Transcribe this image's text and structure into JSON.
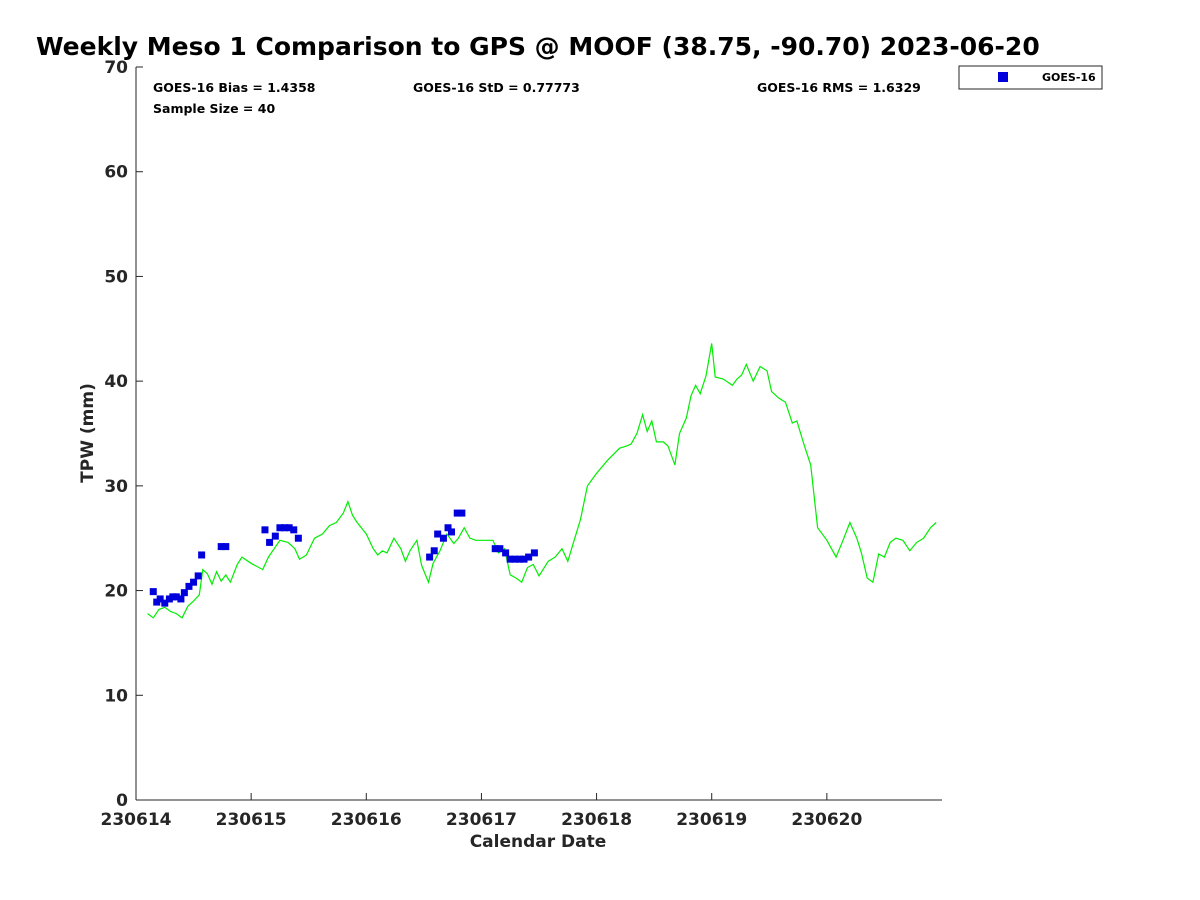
{
  "chart_data": {
    "type": "scatter",
    "title": "Weekly Meso 1 Comparison to GPS @ MOOF (38.75, -90.70) 2023-06-20",
    "xlabel": "Calendar Date",
    "ylabel": "TPW (mm)",
    "xlim": [
      230614.0,
      230621.0
    ],
    "ylim": [
      0,
      70
    ],
    "xticks": [
      230614,
      230615,
      230616,
      230617,
      230618,
      230619,
      230620
    ],
    "yticks": [
      0,
      10,
      20,
      30,
      40,
      50,
      60,
      70
    ],
    "grid": false,
    "legend_position": "top-right outside",
    "stats": {
      "bias": "GOES-16 Bias = 1.4358",
      "std": "GOES-16 StD = 0.77773",
      "rms": "GOES-16 RMS = 1.6329",
      "sample": "Sample Size = 40"
    },
    "series": [
      {
        "name": "GOES-16",
        "kind": "markers",
        "color": "#0000dd",
        "points": [
          [
            230614.15,
            19.9
          ],
          [
            230614.18,
            18.9
          ],
          [
            230614.21,
            19.2
          ],
          [
            230614.25,
            18.8
          ],
          [
            230614.29,
            19.2
          ],
          [
            230614.32,
            19.4
          ],
          [
            230614.35,
            19.4
          ],
          [
            230614.39,
            19.2
          ],
          [
            230614.42,
            19.8
          ],
          [
            230614.46,
            20.4
          ],
          [
            230614.5,
            20.8
          ],
          [
            230614.54,
            21.4
          ],
          [
            230614.57,
            23.4
          ],
          [
            230614.74,
            24.2
          ],
          [
            230614.78,
            24.2
          ],
          [
            230615.12,
            25.8
          ],
          [
            230615.16,
            24.6
          ],
          [
            230615.21,
            25.2
          ],
          [
            230615.25,
            26.0
          ],
          [
            230615.29,
            26.0
          ],
          [
            230615.33,
            26.0
          ],
          [
            230615.37,
            25.8
          ],
          [
            230615.41,
            25.0
          ],
          [
            230616.55,
            23.2
          ],
          [
            230616.59,
            23.8
          ],
          [
            230616.62,
            25.4
          ],
          [
            230616.67,
            25.0
          ],
          [
            230616.71,
            26.0
          ],
          [
            230616.74,
            25.6
          ],
          [
            230616.79,
            27.4
          ],
          [
            230616.83,
            27.4
          ],
          [
            230617.12,
            24.0
          ],
          [
            230617.16,
            24.0
          ],
          [
            230617.21,
            23.6
          ],
          [
            230617.25,
            23.0
          ],
          [
            230617.29,
            23.0
          ],
          [
            230617.33,
            23.0
          ],
          [
            230617.37,
            23.0
          ],
          [
            230617.41,
            23.2
          ],
          [
            230617.46,
            23.6
          ]
        ]
      },
      {
        "kind": "line",
        "color": "#00ee00",
        "points": [
          [
            230614.1,
            17.8
          ],
          [
            230614.15,
            17.4
          ],
          [
            230614.2,
            18.2
          ],
          [
            230614.25,
            18.4
          ],
          [
            230614.3,
            18.0
          ],
          [
            230614.35,
            17.8
          ],
          [
            230614.4,
            17.4
          ],
          [
            230614.45,
            18.5
          ],
          [
            230614.5,
            19.0
          ],
          [
            230614.55,
            19.6
          ],
          [
            230614.58,
            22.0
          ],
          [
            230614.62,
            21.6
          ],
          [
            230614.66,
            20.6
          ],
          [
            230614.7,
            21.8
          ],
          [
            230614.74,
            20.9
          ],
          [
            230614.78,
            21.5
          ],
          [
            230614.82,
            20.8
          ],
          [
            230614.88,
            22.5
          ],
          [
            230614.92,
            23.2
          ],
          [
            230615.0,
            22.6
          ],
          [
            230615.1,
            22.0
          ],
          [
            230615.15,
            23.2
          ],
          [
            230615.2,
            24.0
          ],
          [
            230615.25,
            24.8
          ],
          [
            230615.32,
            24.6
          ],
          [
            230615.38,
            24.0
          ],
          [
            230615.42,
            23.0
          ],
          [
            230615.48,
            23.4
          ],
          [
            230615.55,
            25.0
          ],
          [
            230615.62,
            25.4
          ],
          [
            230615.68,
            26.2
          ],
          [
            230615.74,
            26.5
          ],
          [
            230615.8,
            27.4
          ],
          [
            230615.84,
            28.5
          ],
          [
            230615.88,
            27.2
          ],
          [
            230615.92,
            26.5
          ],
          [
            230616.0,
            25.4
          ],
          [
            230616.06,
            24.0
          ],
          [
            230616.1,
            23.4
          ],
          [
            230616.14,
            23.8
          ],
          [
            230616.18,
            23.6
          ],
          [
            230616.24,
            25.0
          ],
          [
            230616.3,
            24.0
          ],
          [
            230616.34,
            22.8
          ],
          [
            230616.38,
            23.8
          ],
          [
            230616.44,
            24.8
          ],
          [
            230616.48,
            22.4
          ],
          [
            230616.54,
            20.8
          ],
          [
            230616.58,
            22.6
          ],
          [
            230616.64,
            23.8
          ],
          [
            230616.7,
            25.4
          ],
          [
            230616.76,
            24.5
          ],
          [
            230616.8,
            25.0
          ],
          [
            230616.85,
            26.0
          ],
          [
            230616.9,
            25.0
          ],
          [
            230616.95,
            24.8
          ],
          [
            230617.1,
            24.8
          ],
          [
            230617.15,
            23.6
          ],
          [
            230617.2,
            24.0
          ],
          [
            230617.25,
            21.5
          ],
          [
            230617.3,
            21.2
          ],
          [
            230617.35,
            20.8
          ],
          [
            230617.4,
            22.2
          ],
          [
            230617.45,
            22.5
          ],
          [
            230617.5,
            21.4
          ],
          [
            230617.58,
            22.8
          ],
          [
            230617.64,
            23.2
          ],
          [
            230617.7,
            24.0
          ],
          [
            230617.75,
            22.8
          ],
          [
            230617.8,
            24.6
          ],
          [
            230617.86,
            26.8
          ],
          [
            230617.92,
            30.0
          ],
          [
            230618.0,
            31.2
          ],
          [
            230618.1,
            32.5
          ],
          [
            230618.2,
            33.6
          ],
          [
            230618.26,
            33.8
          ],
          [
            230618.3,
            34.0
          ],
          [
            230618.35,
            35.0
          ],
          [
            230618.4,
            36.8
          ],
          [
            230618.44,
            35.2
          ],
          [
            230618.48,
            36.2
          ],
          [
            230618.52,
            34.2
          ],
          [
            230618.58,
            34.2
          ],
          [
            230618.62,
            33.8
          ],
          [
            230618.68,
            32.0
          ],
          [
            230618.72,
            35.0
          ],
          [
            230618.78,
            36.5
          ],
          [
            230618.82,
            38.6
          ],
          [
            230618.86,
            39.6
          ],
          [
            230618.9,
            38.8
          ],
          [
            230618.95,
            40.5
          ],
          [
            230619.0,
            43.6
          ],
          [
            230619.03,
            40.4
          ],
          [
            230619.1,
            40.2
          ],
          [
            230619.18,
            39.6
          ],
          [
            230619.22,
            40.2
          ],
          [
            230619.26,
            40.6
          ],
          [
            230619.3,
            41.6
          ],
          [
            230619.36,
            40.0
          ],
          [
            230619.42,
            41.4
          ],
          [
            230619.48,
            41.0
          ],
          [
            230619.52,
            39.0
          ],
          [
            230619.58,
            38.4
          ],
          [
            230619.64,
            38.0
          ],
          [
            230619.7,
            36.0
          ],
          [
            230619.74,
            36.2
          ],
          [
            230619.8,
            34.0
          ],
          [
            230619.86,
            32.0
          ],
          [
            230619.92,
            26.0
          ],
          [
            230620.0,
            24.8
          ],
          [
            230620.08,
            23.2
          ],
          [
            230620.14,
            24.8
          ],
          [
            230620.2,
            26.5
          ],
          [
            230620.26,
            25.0
          ],
          [
            230620.3,
            23.6
          ],
          [
            230620.35,
            21.2
          ],
          [
            230620.4,
            20.8
          ],
          [
            230620.45,
            23.5
          ],
          [
            230620.5,
            23.2
          ],
          [
            230620.55,
            24.6
          ],
          [
            230620.6,
            25.0
          ],
          [
            230620.66,
            24.8
          ],
          [
            230620.72,
            23.8
          ],
          [
            230620.78,
            24.6
          ],
          [
            230620.84,
            25.0
          ],
          [
            230620.9,
            26.0
          ],
          [
            230620.95,
            26.5
          ]
        ]
      }
    ]
  }
}
